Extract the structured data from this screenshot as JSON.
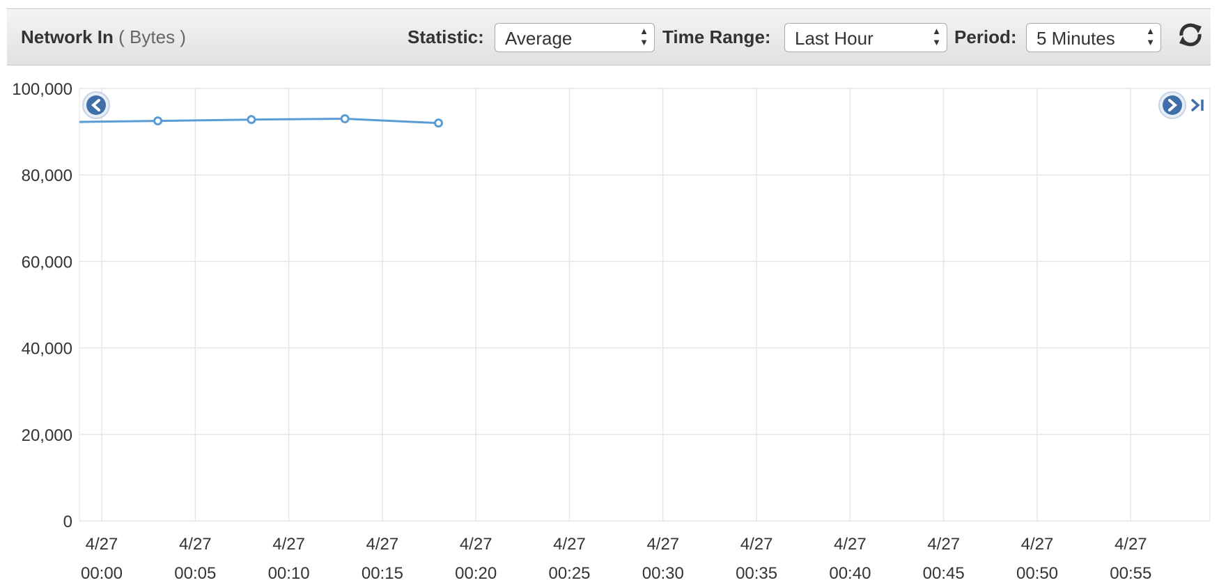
{
  "header": {
    "metric_name": "Network In",
    "metric_unit": "( Bytes )",
    "statistic_label": "Statistic:",
    "statistic_value": "Average",
    "time_range_label": "Time Range:",
    "time_range_value": "Last Hour",
    "period_label": "Period:",
    "period_value": "5 Minutes"
  },
  "icons": {
    "refresh": "refresh-icon",
    "pan_left": "chevron-left-icon",
    "pan_right": "chevron-right-icon",
    "jump_to_end": "jump-to-end-icon"
  },
  "colors": {
    "series": "#5b9bd5",
    "grid": "#e6e6e6",
    "nav_button": "#3f6ea8"
  },
  "chart_data": {
    "type": "line",
    "title": "Network In",
    "ylabel": "Bytes",
    "ylim": [
      0,
      100000
    ],
    "yticks": [
      0,
      20000,
      40000,
      60000,
      80000,
      100000
    ],
    "ytick_labels": [
      "0",
      "20,000",
      "40,000",
      "60,000",
      "80,000",
      "100,000"
    ],
    "xlim": [
      "4/27 00:00",
      "4/27 00:55"
    ],
    "x_tick_labels": [
      {
        "date": "4/27",
        "time": "00:00"
      },
      {
        "date": "4/27",
        "time": "00:05"
      },
      {
        "date": "4/27",
        "time": "00:10"
      },
      {
        "date": "4/27",
        "time": "00:15"
      },
      {
        "date": "4/27",
        "time": "00:20"
      },
      {
        "date": "4/27",
        "time": "00:25"
      },
      {
        "date": "4/27",
        "time": "00:30"
      },
      {
        "date": "4/27",
        "time": "00:35"
      },
      {
        "date": "4/27",
        "time": "00:40"
      },
      {
        "date": "4/27",
        "time": "00:45"
      },
      {
        "date": "4/27",
        "time": "00:50"
      },
      {
        "date": "4/27",
        "time": "00:55"
      }
    ],
    "grid": true,
    "series": [
      {
        "x": [
          "4/27 00:03",
          "4/27 00:08",
          "4/27 00:13",
          "4/27 00:18"
        ],
        "y": [
          92500,
          92800,
          93000,
          92000
        ]
      }
    ],
    "line_extends_left_edge": true
  }
}
